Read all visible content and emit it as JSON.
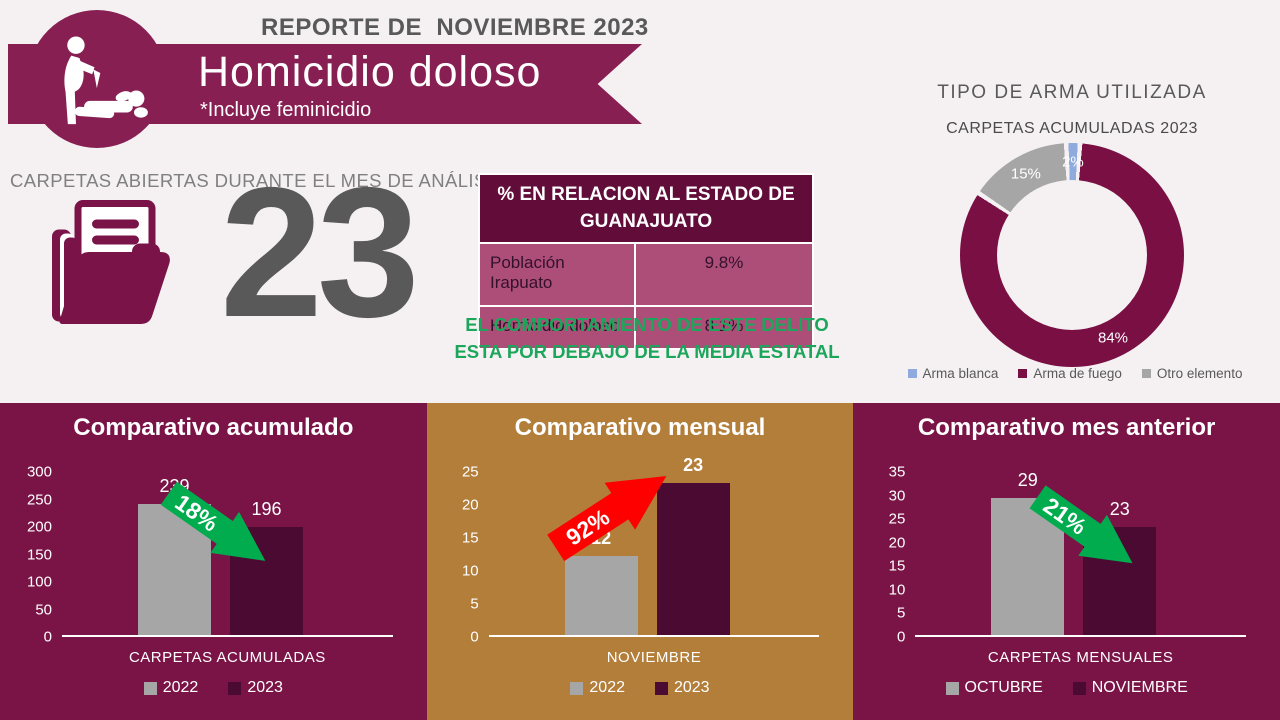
{
  "header": {
    "report_label": "REPORTE DE  NOVIEMBRE 2023",
    "title": "Homicidio doloso",
    "subtitle": "*Incluye feminicidio"
  },
  "kpi": {
    "label": "CARPETAS ABIERTAS DURANTE EL MES DE ANÁLISIS",
    "value": "23"
  },
  "state_table": {
    "header": "% EN RELACION AL ESTADO DE GUANAJUATO",
    "rows": [
      {
        "label": "Población Irapuato",
        "value": "9.8%"
      },
      {
        "label": "Homicidio doloso",
        "value": "8.1%"
      }
    ],
    "note_line1": "EL COMPORTAMIENTO DE ESTE DELITO",
    "note_line2": "ESTA POR DEBAJO DE LA MEDIA ESTATAL"
  },
  "colors": {
    "banner_maroon": "#881F52",
    "panel_maroon": "#7A1446",
    "panel_tan": "#B37D3A",
    "bar_gray": "#A6A6A6",
    "bar_dark_maroon": "#4B0A31",
    "table_header_bg": "#620C3A",
    "table_row_bg": "#AD4E79",
    "note_green": "#1CA65B",
    "arrow_green": "#00AC4E",
    "arrow_red": "#FE0000",
    "donut_blue": "#8FAADC",
    "donut_maroon": "#7A0F43",
    "donut_gray": "#A6A6A6",
    "text_gray": "#595959",
    "page_bg": "#F5F1F2"
  },
  "chart_data": [
    {
      "type": "pie",
      "donut": true,
      "title": "TIPO DE ARMA UTILIZADA",
      "subtitle": "CARPETAS ACUMULADAS 2023",
      "slices": [
        {
          "label": "Arma blanca",
          "value": 2,
          "color": "#8FAADC"
        },
        {
          "label": "Arma de fuego",
          "value": 84,
          "color": "#7A0F43"
        },
        {
          "label": "Otro elemento",
          "value": 15,
          "color": "#A6A6A6"
        }
      ],
      "value_suffix": "%",
      "legend_position": "bottom"
    },
    {
      "type": "bar",
      "title": "Comparativo acumulado",
      "categories": [
        "2022",
        "2023"
      ],
      "values": [
        239,
        196
      ],
      "colors": [
        "#A6A6A6",
        "#4B0A31"
      ],
      "xlabel": "CARPETAS ACUMULADAS",
      "ylim": [
        0,
        300
      ],
      "ytick_step": 50,
      "arrow": {
        "text": "18%",
        "trend": "down",
        "color": "#00AC4E"
      },
      "panel_bg": "#7A1446",
      "value_labels_bold": false,
      "legend_position": "bottom",
      "grid": false
    },
    {
      "type": "bar",
      "title": "Comparativo mensual",
      "categories": [
        "2022",
        "2023"
      ],
      "values": [
        12,
        23
      ],
      "colors": [
        "#A6A6A6",
        "#4B0A31"
      ],
      "xlabel": "NOVIEMBRE",
      "ylim": [
        0,
        25
      ],
      "ytick_step": 5,
      "arrow": {
        "text": "92%",
        "trend": "up",
        "color": "#FE0000"
      },
      "panel_bg": "#B37D3A",
      "value_labels_bold": true,
      "legend_position": "bottom",
      "grid": false
    },
    {
      "type": "bar",
      "title": "Comparativo mes anterior",
      "categories": [
        "OCTUBRE",
        "NOVIEMBRE"
      ],
      "values": [
        29,
        23
      ],
      "colors": [
        "#A6A6A6",
        "#4B0A31"
      ],
      "xlabel": "CARPETAS MENSUALES",
      "ylim": [
        0,
        35
      ],
      "ytick_step": 5,
      "arrow": {
        "text": "21%",
        "trend": "down",
        "color": "#00AC4E"
      },
      "panel_bg": "#7A1446",
      "value_labels_bold": false,
      "legend_position": "bottom",
      "grid": false
    }
  ]
}
